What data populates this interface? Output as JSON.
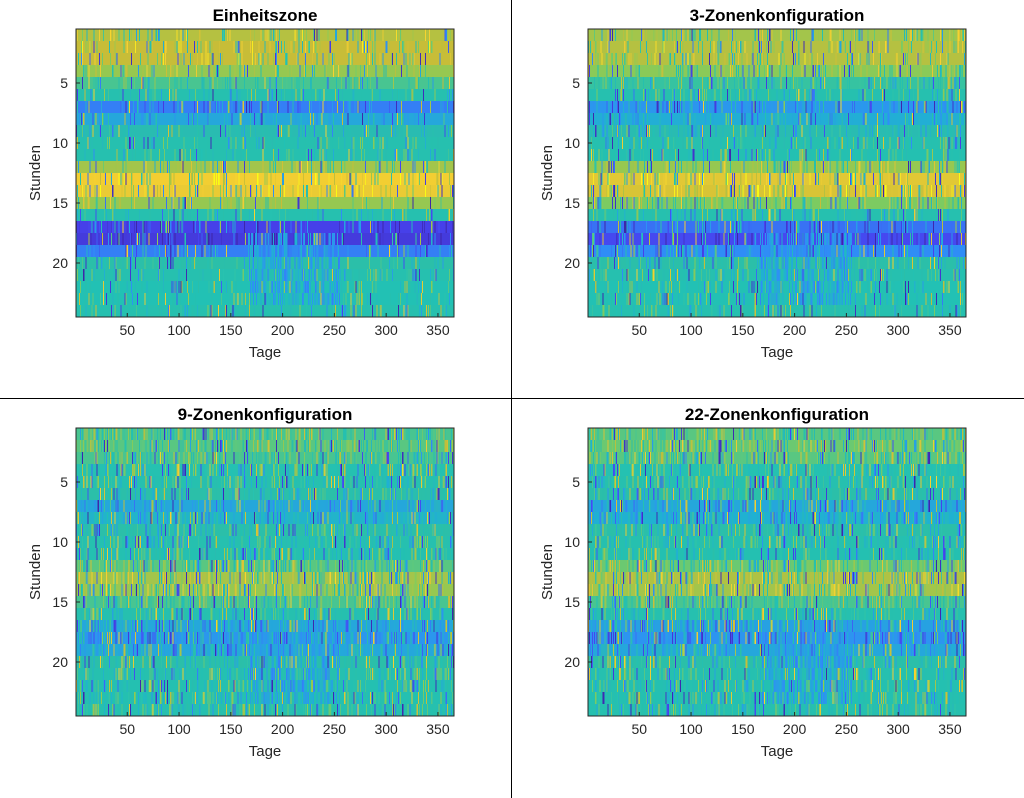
{
  "figure": {
    "colormap": [
      "#3e26a8",
      "#4743f0",
      "#2f8ef6",
      "#20b2d0",
      "#2bbfa8",
      "#21c1b5",
      "#82cc5c",
      "#c6bd38",
      "#f6d032",
      "#f9fb15"
    ],
    "background_teal": "#20b2aa"
  },
  "chart_data": [
    {
      "type": "heatmap",
      "title": "Einheitszone",
      "xlabel": "Tage",
      "ylabel": "Stunden",
      "xlim": [
        0.5,
        365.5
      ],
      "ylim": [
        0.5,
        24.5
      ],
      "x_ticks": [
        50,
        100,
        150,
        200,
        250,
        300,
        350
      ],
      "y_ticks": [
        5,
        10,
        15,
        20
      ],
      "rows": 24,
      "cols": 365,
      "noise": 0.22,
      "hour_profile": [
        0.75,
        0.78,
        0.78,
        0.7,
        0.6,
        0.5,
        0.2,
        0.3,
        0.42,
        0.5,
        0.5,
        0.72,
        0.88,
        0.86,
        0.7,
        0.5,
        0.1,
        0.08,
        0.2,
        0.45,
        0.5,
        0.55,
        0.55,
        0.5
      ]
    },
    {
      "type": "heatmap",
      "title": "3-Zonenkonfiguration",
      "xlabel": "Tage",
      "ylabel": "Stunden",
      "xlim": [
        0.5,
        365.5
      ],
      "ylim": [
        0.5,
        24.5
      ],
      "x_ticks": [
        50,
        100,
        150,
        200,
        250,
        300,
        350
      ],
      "y_ticks": [
        5,
        10,
        15,
        20
      ],
      "rows": 24,
      "cols": 365,
      "noise": 0.3,
      "hour_profile": [
        0.72,
        0.75,
        0.75,
        0.68,
        0.58,
        0.5,
        0.25,
        0.32,
        0.42,
        0.5,
        0.52,
        0.7,
        0.84,
        0.82,
        0.66,
        0.5,
        0.18,
        0.12,
        0.22,
        0.45,
        0.5,
        0.55,
        0.55,
        0.5
      ]
    },
    {
      "type": "heatmap",
      "title": "9-Zonenkonfiguration",
      "xlabel": "Tage",
      "ylabel": "Stunden",
      "xlim": [
        0.5,
        365.5
      ],
      "ylim": [
        0.5,
        24.5
      ],
      "x_ticks": [
        50,
        100,
        150,
        200,
        250,
        300,
        350
      ],
      "y_ticks": [
        5,
        10,
        15,
        20
      ],
      "rows": 24,
      "cols": 365,
      "noise": 0.42,
      "hour_profile": [
        0.6,
        0.62,
        0.6,
        0.56,
        0.5,
        0.45,
        0.3,
        0.35,
        0.45,
        0.5,
        0.52,
        0.62,
        0.72,
        0.7,
        0.6,
        0.5,
        0.3,
        0.25,
        0.3,
        0.45,
        0.5,
        0.52,
        0.52,
        0.5
      ]
    },
    {
      "type": "heatmap",
      "title": "22-Zonenkonfiguration",
      "xlabel": "Tage",
      "ylabel": "Stunden",
      "xlim": [
        0.5,
        365.5
      ],
      "ylim": [
        0.5,
        24.5
      ],
      "x_ticks": [
        50,
        100,
        150,
        200,
        250,
        300,
        350
      ],
      "y_ticks": [
        5,
        10,
        15,
        20
      ],
      "rows": 24,
      "cols": 365,
      "noise": 0.4,
      "hour_profile": [
        0.62,
        0.64,
        0.62,
        0.56,
        0.5,
        0.45,
        0.3,
        0.33,
        0.45,
        0.5,
        0.52,
        0.64,
        0.74,
        0.72,
        0.6,
        0.5,
        0.28,
        0.24,
        0.3,
        0.45,
        0.5,
        0.52,
        0.52,
        0.5
      ]
    }
  ]
}
